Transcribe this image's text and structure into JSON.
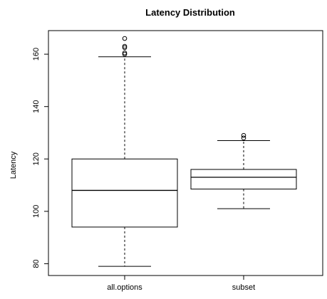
{
  "chart_data": {
    "type": "boxplot",
    "title": "Latency Distribution",
    "xlabel": "",
    "ylabel": "Latency",
    "ylim": [
      75.5,
      169
    ],
    "yticks": [
      80,
      100,
      120,
      140,
      160
    ],
    "categories": [
      "all.options",
      "subset"
    ],
    "boxes": [
      {
        "name": "all.options",
        "whisker_low": 79,
        "q1": 94,
        "median": 108,
        "q3": 120,
        "whisker_high": 159,
        "outliers": [
          160,
          160.5,
          162.5,
          163,
          166
        ]
      },
      {
        "name": "subset",
        "whisker_low": 101,
        "q1": 108.5,
        "median": 113,
        "q3": 116,
        "whisker_high": 127,
        "outliers": [
          128,
          129
        ]
      }
    ],
    "grid": false
  }
}
